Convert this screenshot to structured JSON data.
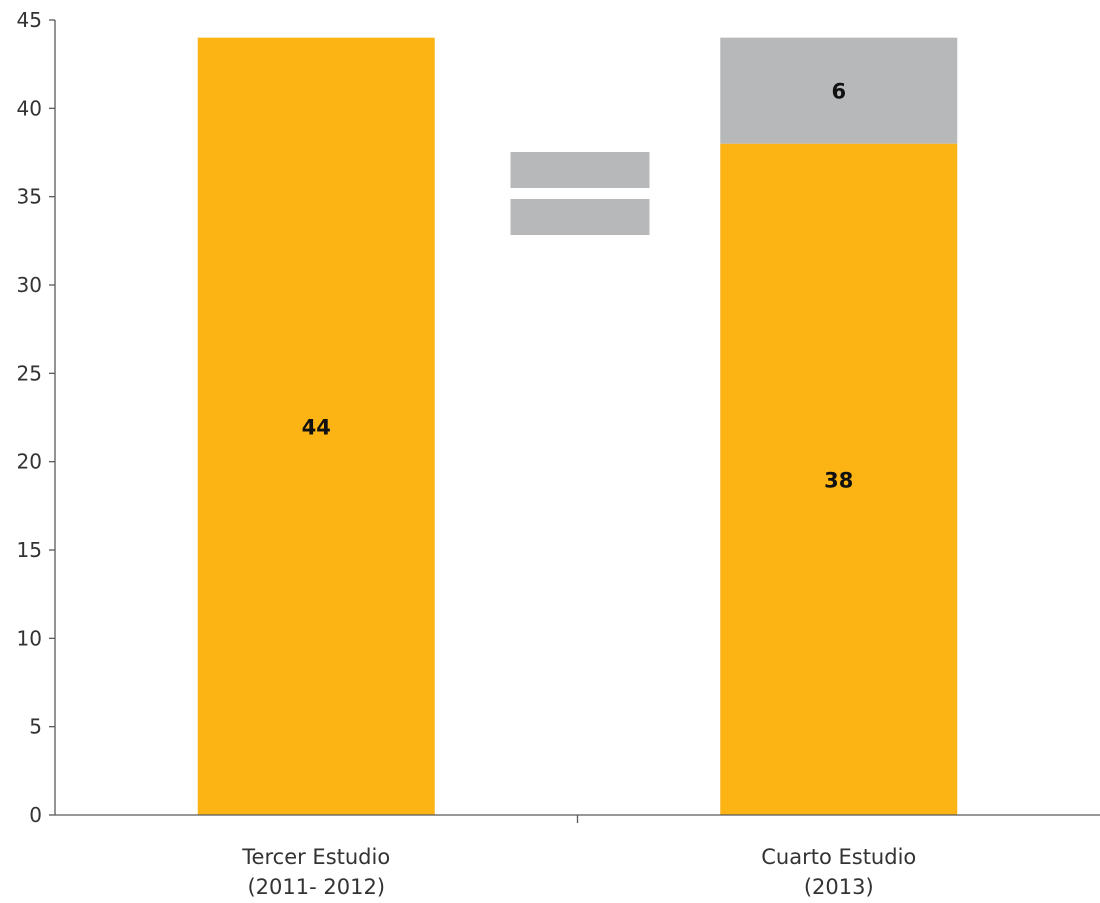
{
  "chart_data": {
    "type": "bar",
    "stacked": true,
    "categories": [
      [
        "Tercer Estudio",
        "(2011- 2012)"
      ],
      [
        "Cuarto Estudio",
        "(2013)"
      ]
    ],
    "series": [
      {
        "values": [
          44,
          38
        ],
        "labels": [
          "44",
          "38"
        ],
        "color": "#FBB414"
      },
      {
        "values": [
          0,
          6
        ],
        "labels": [
          "",
          "6"
        ],
        "color": "#B7B8BA"
      }
    ],
    "equals_sign_color": "#B7B8BA",
    "ylim": [
      0,
      45
    ],
    "yticks": [
      0,
      5,
      10,
      15,
      20,
      25,
      30,
      35,
      40,
      45
    ],
    "grid": false,
    "legend": "none",
    "xlabel": "",
    "ylabel": "",
    "title": ""
  }
}
